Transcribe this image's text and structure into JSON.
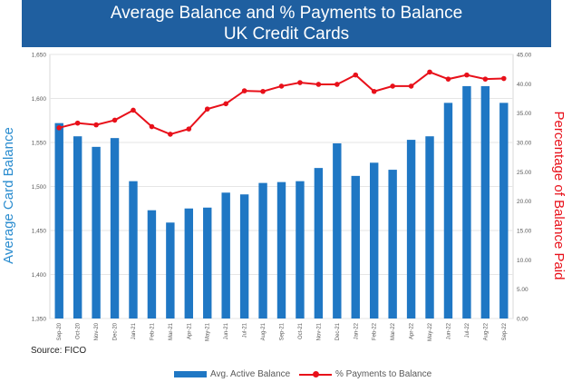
{
  "header": {
    "title_line1": "Average Balance and % Payments to Balance",
    "title_line2": "UK Credit Cards"
  },
  "source": "Source: FICO",
  "colors": {
    "title_bg": "#1f5fa0",
    "bar": "#1f77c4",
    "line": "#e8101a",
    "left_axis_label": "#2a8ccf",
    "right_axis_label": "#e8101a"
  },
  "chart_data": {
    "type": "bar",
    "title": "Average Balance and % Payments to Balance UK Credit Cards",
    "categories": [
      "Sep-20",
      "Oct-20",
      "Nov-20",
      "Dec-20",
      "Jan-21",
      "Feb-21",
      "Mar-21",
      "Apr-21",
      "May-21",
      "Jun-21",
      "Jul-21",
      "Aug-21",
      "Sep-21",
      "Oct-21",
      "Nov-21",
      "Dec-21",
      "Jan-22",
      "Feb-22",
      "Mar-22",
      "Apr-22",
      "May-22",
      "Jun-22",
      "Jul-22",
      "Aug-22",
      "Sep-22"
    ],
    "series": [
      {
        "name": "Avg. Active Balance",
        "type": "bar",
        "axis": "left",
        "values": [
          1572,
          1557,
          1545,
          1555,
          1506,
          1473,
          1459,
          1475,
          1476,
          1493,
          1491,
          1504,
          1505,
          1506,
          1521,
          1549,
          1512,
          1527,
          1519,
          1553,
          1557,
          1595,
          1614,
          1614,
          1595
        ]
      },
      {
        "name": "% Payments to Balance",
        "type": "line",
        "axis": "right",
        "values": [
          32.5,
          33.3,
          33.0,
          33.8,
          35.5,
          32.7,
          31.4,
          32.3,
          35.7,
          36.6,
          38.8,
          38.7,
          39.6,
          40.2,
          39.9,
          39.9,
          41.5,
          38.7,
          39.6,
          39.6,
          42.0,
          40.8,
          41.5,
          40.8,
          40.9
        ]
      }
    ],
    "ylabel": "Average Card Balance",
    "ylabel_right": "Percentage of Balance Paid",
    "ylim": [
      1350,
      1650
    ],
    "ylim_right": [
      0,
      45
    ],
    "y_ticks": [
      "1,350",
      "1,400",
      "1,450",
      "1,500",
      "1,550",
      "1,600",
      "1,650"
    ],
    "y_right_ticks": [
      "0.00",
      "5.00",
      "10.00",
      "15.00",
      "20.00",
      "25.00",
      "30.00",
      "35.00",
      "40.00",
      "45.00"
    ],
    "grid": true,
    "legend_position": "bottom"
  }
}
